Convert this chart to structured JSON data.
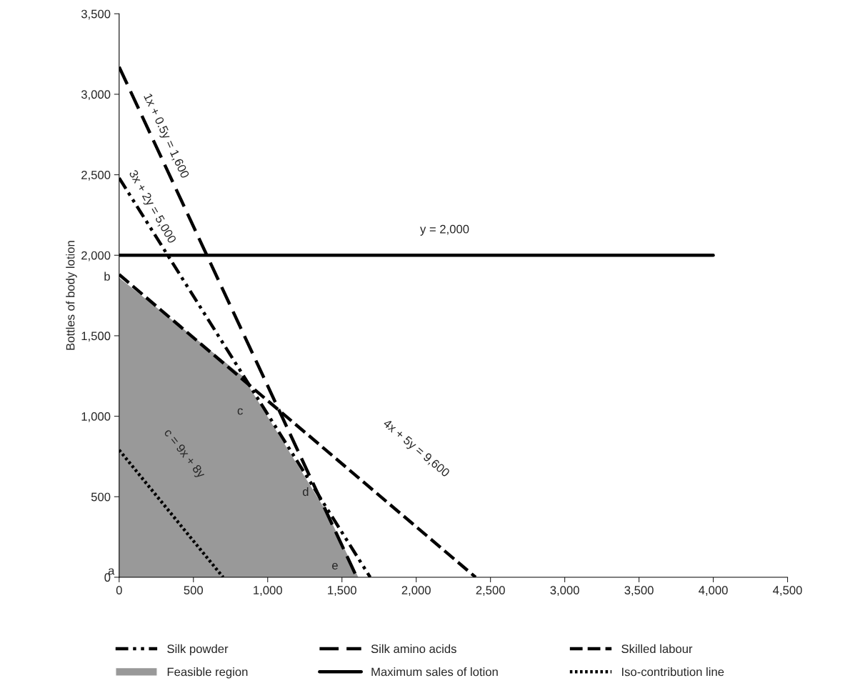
{
  "chart_data": {
    "type": "line",
    "ylabel": "Bottles of body lotion",
    "xlim": [
      0,
      4500
    ],
    "xticks": [
      {
        "value": 0,
        "label": "0"
      },
      {
        "value": 500,
        "label": "500"
      },
      {
        "value": 1000,
        "label": "1,000"
      },
      {
        "value": 1500,
        "label": "1,500"
      },
      {
        "value": 2000,
        "label": "2,000"
      },
      {
        "value": 2500,
        "label": "2,500"
      },
      {
        "value": 3000,
        "label": "3,000"
      },
      {
        "value": 3500,
        "label": "3,500"
      },
      {
        "value": 4000,
        "label": "4,000"
      },
      {
        "value": 4500,
        "label": "4,500"
      }
    ],
    "ylim": [
      0,
      3500
    ],
    "yticks": [
      {
        "value": 0,
        "label": "0"
      },
      {
        "value": 500,
        "label": "500"
      },
      {
        "value": 1000,
        "label": "1,000"
      },
      {
        "value": 1500,
        "label": "1,500"
      },
      {
        "value": 2000,
        "label": "2,000"
      },
      {
        "value": 2500,
        "label": "2,500"
      },
      {
        "value": 3000,
        "label": "3,000"
      },
      {
        "value": 3500,
        "label": "3,500"
      }
    ],
    "grid": false,
    "legend": "bottom",
    "marker": "none",
    "series": [
      {
        "name": "Silk powder",
        "line_style": "dashdot",
        "color": "#000000",
        "x": [
          0,
          1690
        ],
        "values": [
          2480,
          0
        ]
      },
      {
        "name": "Feasible region",
        "type": "area",
        "color": "#999999",
        "x": [
          0,
          830,
          1400,
          1610
        ],
        "values": [
          1860,
          1250,
          400,
          0
        ]
      },
      {
        "name": "Silk amino acids",
        "line_style": "longdash",
        "color": "#000000",
        "x": [
          0,
          1600
        ],
        "values": [
          3170,
          0
        ]
      },
      {
        "name": "Maximum sales of lotion",
        "line_style": "solid",
        "color": "#000000",
        "x": [
          0,
          4000
        ],
        "values": [
          2000,
          2000
        ]
      },
      {
        "name": "Skilled labour",
        "line_style": "dashed",
        "color": "#000000",
        "x": [
          0,
          2400
        ],
        "values": [
          1880,
          0
        ]
      },
      {
        "name": "Iso-contribution line",
        "line_style": "dotted",
        "color": "#000000",
        "x": [
          0,
          700
        ],
        "values": [
          790,
          0
        ]
      }
    ],
    "annotations": [
      "1x + 0.5y = 1,600",
      "3x + 2y = 5,000",
      "y = 2,000",
      "4x + 5y = 9,600",
      "c = 9x + 8y",
      "a",
      "b",
      "c",
      "d",
      {
        "text": "e",
        "x": 1600,
        "y": 0
      }
    ]
  }
}
